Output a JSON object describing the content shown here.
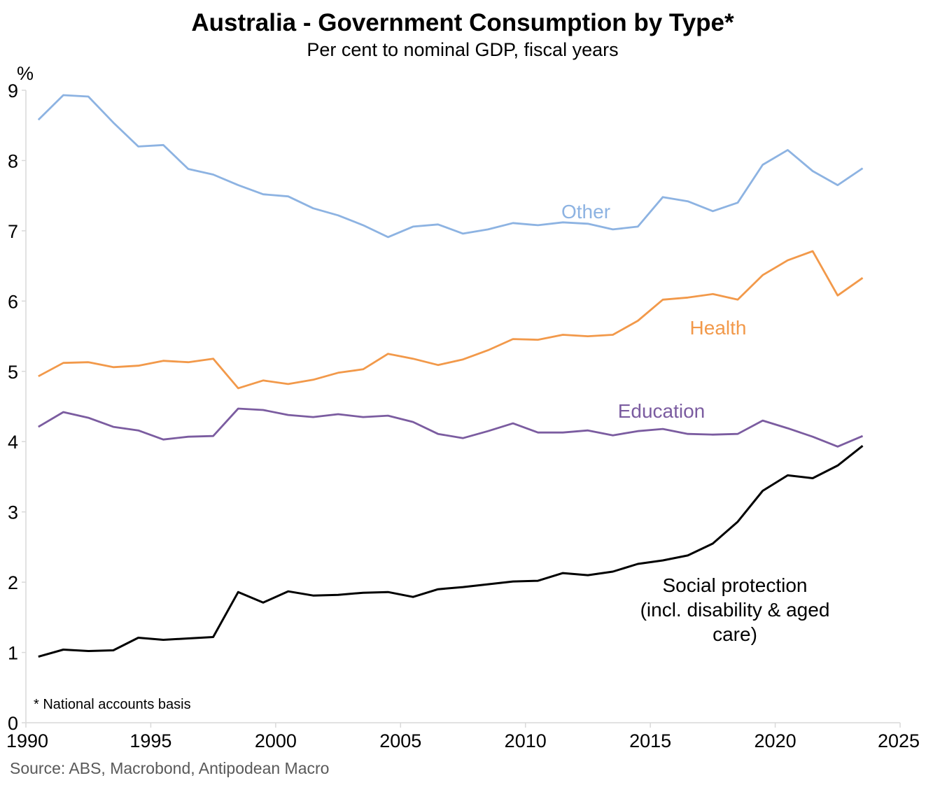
{
  "chart_data": {
    "type": "line",
    "title": "Australia - Government Consumption by Type*",
    "subtitle": "Per cent to nominal GDP, fiscal years",
    "ylabel": "%",
    "xlabel": "",
    "xlim": [
      1990,
      2025
    ],
    "ylim": [
      0,
      9
    ],
    "x_ticks": [
      1990,
      1995,
      2000,
      2005,
      2010,
      2015,
      2020,
      2025
    ],
    "y_ticks": [
      0,
      1,
      2,
      3,
      4,
      5,
      6,
      7,
      8,
      9
    ],
    "grid": false,
    "x": [
      1990.5,
      1991.5,
      1992.5,
      1993.5,
      1994.5,
      1995.5,
      1996.5,
      1997.5,
      1998.5,
      1999.5,
      2000.5,
      2001.5,
      2002.5,
      2003.5,
      2004.5,
      2005.5,
      2006.5,
      2007.5,
      2008.5,
      2009.5,
      2010.5,
      2011.5,
      2012.5,
      2013.5,
      2014.5,
      2015.5,
      2016.5,
      2017.5,
      2018.5,
      2019.5,
      2020.5,
      2021.5,
      2022.5,
      2023.5
    ],
    "series": [
      {
        "name": "Other",
        "color": "#8DB3E2",
        "values": [
          8.58,
          8.93,
          8.91,
          8.54,
          8.2,
          8.22,
          7.88,
          7.8,
          7.65,
          7.52,
          7.49,
          7.32,
          7.22,
          7.08,
          6.91,
          7.06,
          7.09,
          6.96,
          7.02,
          7.11,
          7.08,
          7.12,
          7.1,
          7.02,
          7.06,
          7.48,
          7.42,
          7.28,
          7.4,
          7.94,
          8.15,
          7.85,
          7.65,
          7.89
        ]
      },
      {
        "name": "Health",
        "color": "#F2994A",
        "values": [
          4.93,
          5.12,
          5.13,
          5.06,
          5.08,
          5.15,
          5.13,
          5.18,
          4.76,
          4.87,
          4.82,
          4.88,
          4.98,
          5.03,
          5.25,
          5.18,
          5.09,
          5.17,
          5.3,
          5.46,
          5.45,
          5.52,
          5.5,
          5.52,
          5.72,
          6.02,
          6.05,
          6.1,
          6.02,
          6.37,
          6.58,
          6.71,
          6.08,
          6.33
        ]
      },
      {
        "name": "Education",
        "color": "#7B5CA0",
        "values": [
          4.21,
          4.42,
          4.34,
          4.21,
          4.16,
          4.03,
          4.07,
          4.08,
          4.47,
          4.45,
          4.38,
          4.35,
          4.39,
          4.35,
          4.37,
          4.28,
          4.11,
          4.05,
          4.15,
          4.26,
          4.13,
          4.13,
          4.16,
          4.09,
          4.15,
          4.18,
          4.11,
          4.1,
          4.11,
          4.3,
          4.19,
          4.07,
          3.93,
          4.08
        ]
      },
      {
        "name": "Social protection (incl. disability & aged care)",
        "color": "#000000",
        "values": [
          0.94,
          1.04,
          1.02,
          1.03,
          1.21,
          1.18,
          1.2,
          1.22,
          1.86,
          1.71,
          1.87,
          1.81,
          1.82,
          1.85,
          1.86,
          1.79,
          1.9,
          1.93,
          1.97,
          2.01,
          2.02,
          2.13,
          2.1,
          2.15,
          2.26,
          2.31,
          2.38,
          2.55,
          2.86,
          3.3,
          3.52,
          3.48,
          3.66,
          3.94
        ]
      }
    ],
    "annotations": {
      "other": "Other",
      "health": "Health",
      "education": "Education",
      "social_line1": "Social protection",
      "social_line2": "(incl. disability & aged",
      "social_line3": "care)"
    },
    "footnote": "* National accounts basis",
    "source": "Source: ABS, Macrobond, Antipodean Macro"
  }
}
